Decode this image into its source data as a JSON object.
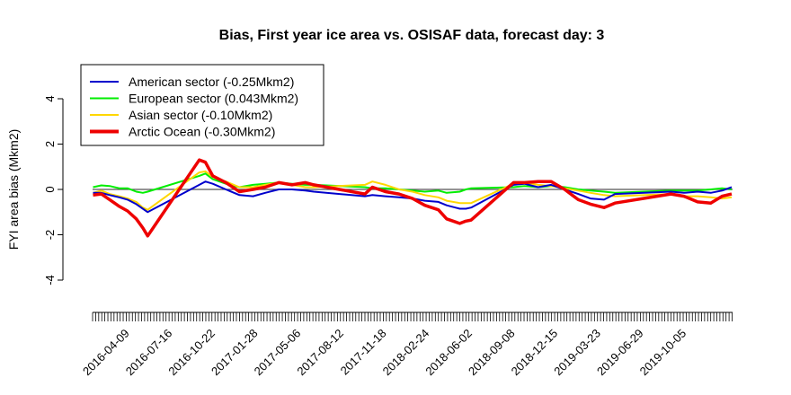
{
  "chart_data": {
    "type": "line",
    "title": "Bias, First year ice area vs. OSISAF data, forecast day: 3",
    "xlabel": "",
    "ylabel": "FYI area bias (Mkm2)",
    "ylim": [
      -4,
      4
    ],
    "yticks": [
      -4,
      -2,
      0,
      2,
      4
    ],
    "xlim": [
      "2016-01-31",
      "2020-02-03"
    ],
    "xtick_labels": [
      "2016-04-09",
      "2016-07-16",
      "2016-10-22",
      "2017-01-28",
      "2017-05-06",
      "2017-08-12",
      "2017-11-18",
      "2018-02-24",
      "2018-06-02",
      "2018-09-08",
      "2018-12-15",
      "2019-03-23",
      "2019-06-29",
      "2019-10-05"
    ],
    "reference_line": 0,
    "legend_position": "top-left",
    "grid": false,
    "series": [
      {
        "name": "European sector (0.043Mkm2)",
        "color": "#00ee00",
        "points": [
          [
            "2016-02-01",
            0.1
          ],
          [
            "2016-02-20",
            0.18
          ],
          [
            "2016-03-10",
            0.15
          ],
          [
            "2016-04-01",
            0.05
          ],
          [
            "2016-04-20",
            0.05
          ],
          [
            "2016-05-10",
            -0.1
          ],
          [
            "2016-05-25",
            -0.15
          ],
          [
            "2016-06-05",
            -0.1
          ],
          [
            "2016-10-01",
            0.6
          ],
          [
            "2016-10-15",
            0.7
          ],
          [
            "2016-11-01",
            0.45
          ],
          [
            "2016-12-01",
            0.25
          ],
          [
            "2017-01-01",
            0.1
          ],
          [
            "2017-02-01",
            0.2
          ],
          [
            "2017-03-01",
            0.25
          ],
          [
            "2017-04-01",
            0.3
          ],
          [
            "2017-05-01",
            0.25
          ],
          [
            "2017-06-01",
            0.2
          ],
          [
            "2017-06-20",
            0.2
          ],
          [
            "2017-10-15",
            0.1
          ],
          [
            "2017-11-01",
            0.05
          ],
          [
            "2017-12-01",
            0.05
          ],
          [
            "2018-01-01",
            0.0
          ],
          [
            "2018-02-01",
            -0.05
          ],
          [
            "2018-03-01",
            -0.1
          ],
          [
            "2018-04-01",
            -0.05
          ],
          [
            "2018-04-20",
            -0.15
          ],
          [
            "2018-05-20",
            -0.1
          ],
          [
            "2018-06-03",
            0.0
          ],
          [
            "2018-06-15",
            0.05
          ],
          [
            "2018-09-20",
            0.1
          ],
          [
            "2018-10-15",
            0.15
          ],
          [
            "2018-11-15",
            0.1
          ],
          [
            "2018-12-15",
            0.15
          ],
          [
            "2019-01-15",
            0.1
          ],
          [
            "2019-02-15",
            0.0
          ],
          [
            "2019-03-15",
            -0.05
          ],
          [
            "2019-04-15",
            -0.1
          ],
          [
            "2019-05-10",
            -0.15
          ],
          [
            "2019-09-15",
            -0.05
          ],
          [
            "2019-10-15",
            -0.05
          ],
          [
            "2019-11-15",
            -0.05
          ],
          [
            "2019-12-15",
            0.0
          ],
          [
            "2020-01-10",
            0.05
          ],
          [
            "2020-02-01",
            0.0
          ]
        ]
      },
      {
        "name": "Asian sector (-0.10Mkm2)",
        "color": "#ffd700",
        "points": [
          [
            "2016-02-01",
            -0.15
          ],
          [
            "2016-02-20",
            -0.05
          ],
          [
            "2016-03-10",
            -0.2
          ],
          [
            "2016-04-01",
            -0.3
          ],
          [
            "2016-04-20",
            -0.4
          ],
          [
            "2016-05-10",
            -0.55
          ],
          [
            "2016-05-25",
            -0.8
          ],
          [
            "2016-06-05",
            -0.9
          ],
          [
            "2016-10-01",
            0.75
          ],
          [
            "2016-10-15",
            0.8
          ],
          [
            "2016-11-01",
            0.55
          ],
          [
            "2016-12-01",
            0.35
          ],
          [
            "2017-01-01",
            0.1
          ],
          [
            "2017-02-01",
            0.1
          ],
          [
            "2017-03-01",
            0.2
          ],
          [
            "2017-04-01",
            0.3
          ],
          [
            "2017-05-01",
            0.2
          ],
          [
            "2017-06-01",
            0.1
          ],
          [
            "2017-06-20",
            0.1
          ],
          [
            "2017-10-15",
            0.2
          ],
          [
            "2017-11-01",
            0.35
          ],
          [
            "2017-12-01",
            0.2
          ],
          [
            "2018-01-01",
            0.0
          ],
          [
            "2018-02-01",
            -0.1
          ],
          [
            "2018-03-01",
            -0.25
          ],
          [
            "2018-04-01",
            -0.35
          ],
          [
            "2018-04-20",
            -0.5
          ],
          [
            "2018-05-20",
            -0.6
          ],
          [
            "2018-06-03",
            -0.6
          ],
          [
            "2018-06-15",
            -0.6
          ],
          [
            "2018-09-20",
            0.25
          ],
          [
            "2018-10-15",
            0.3
          ],
          [
            "2018-11-15",
            0.2
          ],
          [
            "2018-12-15",
            0.15
          ],
          [
            "2019-01-15",
            0.05
          ],
          [
            "2019-02-15",
            -0.05
          ],
          [
            "2019-03-15",
            -0.15
          ],
          [
            "2019-04-15",
            -0.25
          ],
          [
            "2019-05-10",
            -0.3
          ],
          [
            "2019-09-15",
            -0.2
          ],
          [
            "2019-10-15",
            -0.3
          ],
          [
            "2019-11-15",
            -0.3
          ],
          [
            "2019-12-15",
            -0.35
          ],
          [
            "2020-01-10",
            -0.4
          ],
          [
            "2020-02-01",
            -0.35
          ]
        ]
      },
      {
        "name": "American sector (-0.25Mkm2)",
        "color": "#0000cc",
        "points": [
          [
            "2016-02-01",
            -0.15
          ],
          [
            "2016-02-20",
            -0.15
          ],
          [
            "2016-03-10",
            -0.25
          ],
          [
            "2016-04-01",
            -0.35
          ],
          [
            "2016-04-20",
            -0.45
          ],
          [
            "2016-05-10",
            -0.65
          ],
          [
            "2016-05-25",
            -0.85
          ],
          [
            "2016-06-05",
            -1.0
          ],
          [
            "2016-10-01",
            0.2
          ],
          [
            "2016-10-15",
            0.35
          ],
          [
            "2016-11-01",
            0.25
          ],
          [
            "2016-12-01",
            0.0
          ],
          [
            "2017-01-01",
            -0.25
          ],
          [
            "2017-02-01",
            -0.3
          ],
          [
            "2017-03-01",
            -0.15
          ],
          [
            "2017-04-01",
            0.0
          ],
          [
            "2017-05-01",
            0.0
          ],
          [
            "2017-06-01",
            -0.05
          ],
          [
            "2017-06-20",
            -0.1
          ],
          [
            "2017-10-15",
            -0.3
          ],
          [
            "2017-11-01",
            -0.25
          ],
          [
            "2017-12-01",
            -0.3
          ],
          [
            "2018-01-01",
            -0.35
          ],
          [
            "2018-02-01",
            -0.4
          ],
          [
            "2018-03-01",
            -0.5
          ],
          [
            "2018-04-01",
            -0.55
          ],
          [
            "2018-04-20",
            -0.7
          ],
          [
            "2018-05-20",
            -0.85
          ],
          [
            "2018-06-03",
            -0.85
          ],
          [
            "2018-06-15",
            -0.8
          ],
          [
            "2018-09-20",
            0.2
          ],
          [
            "2018-10-15",
            0.25
          ],
          [
            "2018-11-15",
            0.1
          ],
          [
            "2018-12-15",
            0.2
          ],
          [
            "2019-01-15",
            0.0
          ],
          [
            "2019-02-15",
            -0.2
          ],
          [
            "2019-03-15",
            -0.4
          ],
          [
            "2019-04-15",
            -0.45
          ],
          [
            "2019-05-10",
            -0.2
          ],
          [
            "2019-09-15",
            -0.1
          ],
          [
            "2019-10-15",
            -0.15
          ],
          [
            "2019-11-15",
            -0.1
          ],
          [
            "2019-12-15",
            -0.15
          ],
          [
            "2020-01-10",
            -0.05
          ],
          [
            "2020-02-01",
            0.1
          ]
        ]
      },
      {
        "name": "Arctic Ocean (-0.30Mkm2)",
        "color": "#ee0000",
        "points": [
          [
            "2016-02-01",
            -0.25
          ],
          [
            "2016-02-20",
            -0.2
          ],
          [
            "2016-03-10",
            -0.45
          ],
          [
            "2016-04-01",
            -0.75
          ],
          [
            "2016-04-20",
            -0.95
          ],
          [
            "2016-05-10",
            -1.3
          ],
          [
            "2016-05-25",
            -1.7
          ],
          [
            "2016-06-05",
            -2.05
          ],
          [
            "2016-10-01",
            1.3
          ],
          [
            "2016-10-15",
            1.2
          ],
          [
            "2016-11-01",
            0.6
          ],
          [
            "2016-12-01",
            0.3
          ],
          [
            "2017-01-01",
            -0.1
          ],
          [
            "2017-02-01",
            0.0
          ],
          [
            "2017-03-01",
            0.1
          ],
          [
            "2017-04-01",
            0.3
          ],
          [
            "2017-05-01",
            0.2
          ],
          [
            "2017-06-01",
            0.3
          ],
          [
            "2017-06-20",
            0.2
          ],
          [
            "2017-10-15",
            -0.2
          ],
          [
            "2017-11-01",
            0.1
          ],
          [
            "2017-12-01",
            -0.1
          ],
          [
            "2018-01-01",
            -0.2
          ],
          [
            "2018-02-01",
            -0.4
          ],
          [
            "2018-03-01",
            -0.7
          ],
          [
            "2018-04-01",
            -0.9
          ],
          [
            "2018-04-20",
            -1.3
          ],
          [
            "2018-05-20",
            -1.5
          ],
          [
            "2018-06-03",
            -1.4
          ],
          [
            "2018-06-15",
            -1.35
          ],
          [
            "2018-09-20",
            0.3
          ],
          [
            "2018-10-15",
            0.3
          ],
          [
            "2018-11-15",
            0.35
          ],
          [
            "2018-12-15",
            0.35
          ],
          [
            "2019-01-15",
            0.0
          ],
          [
            "2019-02-15",
            -0.45
          ],
          [
            "2019-03-15",
            -0.65
          ],
          [
            "2019-04-15",
            -0.8
          ],
          [
            "2019-05-10",
            -0.6
          ],
          [
            "2019-09-15",
            -0.2
          ],
          [
            "2019-10-15",
            -0.3
          ],
          [
            "2019-11-15",
            -0.55
          ],
          [
            "2019-12-15",
            -0.6
          ],
          [
            "2020-01-10",
            -0.3
          ],
          [
            "2020-02-01",
            -0.2
          ]
        ]
      }
    ]
  }
}
